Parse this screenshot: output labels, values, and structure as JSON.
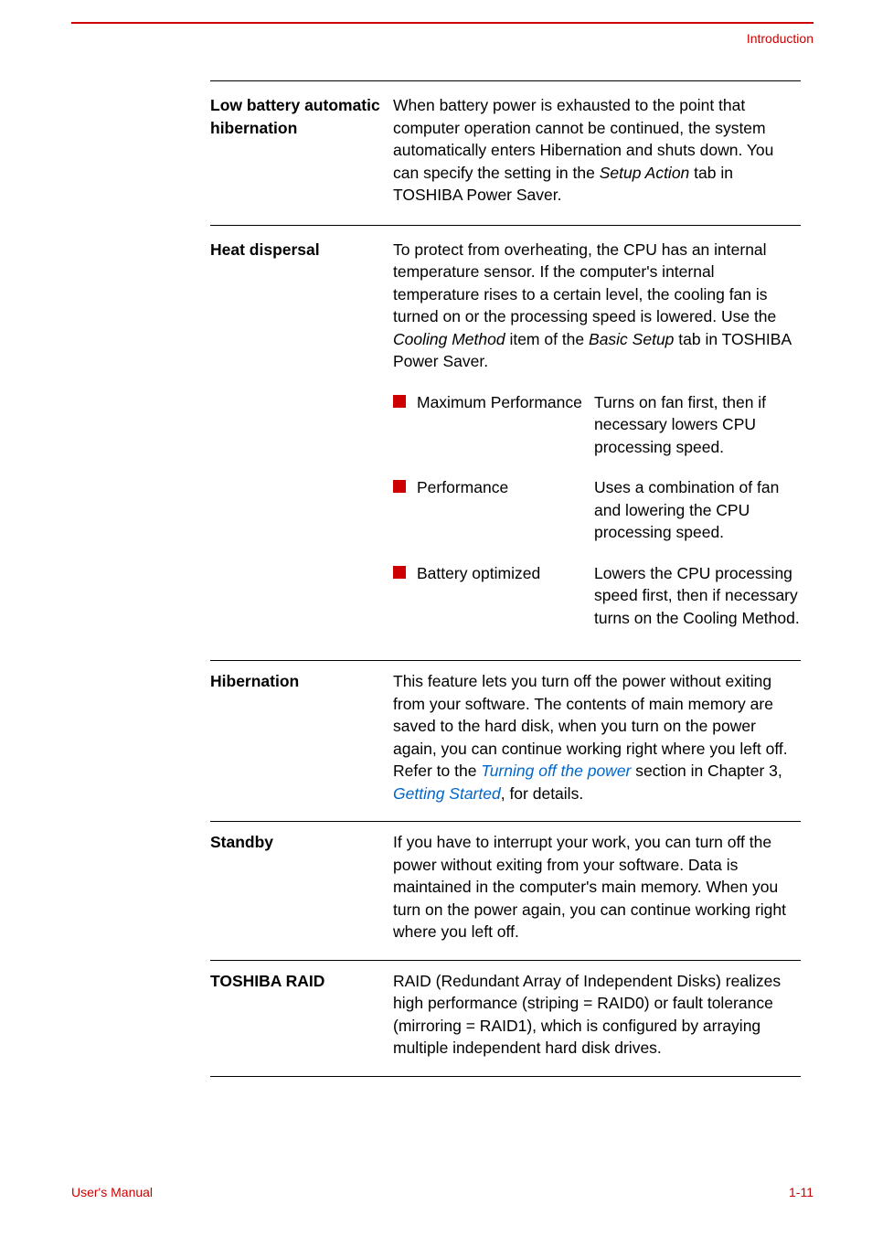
{
  "colors": {
    "accent": "#cc0000",
    "link": "#0066cc",
    "text": "#000000",
    "background": "#ffffff"
  },
  "typography": {
    "body_fontsize_pt": 13,
    "body_lineheight": 1.4,
    "term_weight": "bold",
    "font_family": "Arial"
  },
  "header": {
    "section_label": "Introduction"
  },
  "sections": [
    {
      "term": "Low battery automatic hibernation",
      "body_parts": [
        {
          "text": "When battery power is exhausted to the point that computer operation cannot be continued, the system automatically enters Hibernation and shuts down. You can specify the setting in the "
        },
        {
          "text": "Setup Action",
          "style": "ital"
        },
        {
          "text": " tab in TOSHIBA Power Saver."
        }
      ]
    },
    {
      "term": "Heat dispersal",
      "body_parts": [
        {
          "text": "To protect from overheating, the CPU has an internal temperature sensor. If the computer's internal temperature rises to a certain level, the cooling fan is turned on or the processing speed is lowered. Use the "
        },
        {
          "text": "Cooling Method",
          "style": "ital"
        },
        {
          "text": " item of the "
        },
        {
          "text": "Basic Setup",
          "style": "ital"
        },
        {
          "text": " tab in TOSHIBA Power Saver."
        }
      ],
      "bullets": [
        {
          "label": "Maximum Performance",
          "desc": "Turns on fan first, then if necessary lowers CPU processing speed."
        },
        {
          "label": "Performance",
          "desc": "Uses a combination of fan and lowering the CPU processing speed."
        },
        {
          "label": "Battery optimized",
          "desc": "Lowers the CPU processing speed first, then if necessary turns on the Cooling Method."
        }
      ]
    },
    {
      "term": "Hibernation",
      "body_parts": [
        {
          "text": "This feature lets you turn off the power without exiting from your software. The contents of main memory are saved to the hard disk, when you turn on the power again, you can continue working right where you left off. Refer to the "
        },
        {
          "text": "Turning off the power",
          "style": "link"
        },
        {
          "text": " section in Chapter 3, "
        },
        {
          "text": "Getting Started",
          "style": "link"
        },
        {
          "text": ", for details."
        }
      ]
    },
    {
      "term": "Standby",
      "body_parts": [
        {
          "text": "If you have to interrupt your work, you can turn off the power without exiting from your software. Data is maintained in the computer's main memory. When you turn on the power again, you can continue working right where you left off."
        }
      ]
    },
    {
      "term": "TOSHIBA RAID",
      "body_parts": [
        {
          "text": "RAID (Redundant Array of Independent Disks) realizes high performance (striping = RAID0) or fault tolerance (mirroring = RAID1), which is configured by arraying multiple independent hard disk drives."
        }
      ]
    }
  ],
  "footer": {
    "left": "User's Manual",
    "right": "1-11"
  }
}
